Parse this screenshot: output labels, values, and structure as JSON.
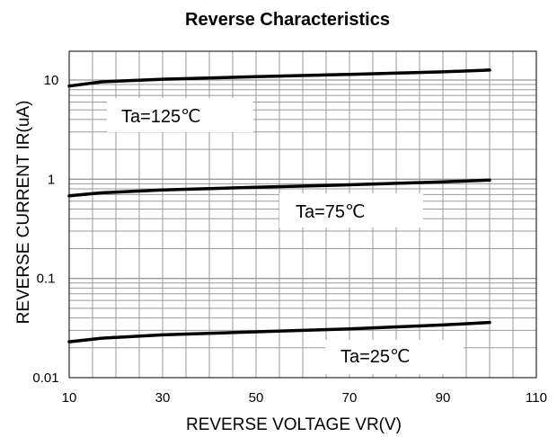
{
  "chart_data": {
    "type": "line",
    "title": "Reverse  Characteristics",
    "xlabel": "REVERSE VOLTAGE    VR(V)",
    "ylabel": "REVERSE CURRENT  IR(uA)",
    "x_ticks": [
      "10",
      "30",
      "50",
      "70",
      "90",
      "110"
    ],
    "y_ticks": [
      "0.01",
      "0.1",
      "1",
      "10"
    ],
    "xlim": [
      10,
      110
    ],
    "ylim": [
      0.01,
      40
    ],
    "y_scale": "log",
    "grid": true,
    "series": [
      {
        "x": [
          10,
          17,
          30,
          50,
          70,
          90,
          100
        ],
        "y": [
          8.7,
          9.6,
          10.2,
          10.8,
          11.4,
          12.1,
          12.6
        ],
        "annotation": "Ta=125℃"
      },
      {
        "x": [
          10,
          17,
          30,
          50,
          70,
          90,
          100
        ],
        "y": [
          0.68,
          0.73,
          0.78,
          0.83,
          0.88,
          0.94,
          0.98
        ],
        "annotation": "Ta=75℃"
      },
      {
        "x": [
          10,
          17,
          30,
          50,
          70,
          90,
          100
        ],
        "y": [
          0.023,
          0.025,
          0.027,
          0.029,
          0.031,
          0.034,
          0.036
        ],
        "annotation": "Ta=25℃"
      }
    ],
    "line_color": "#000000",
    "grid_color": "#999999"
  }
}
